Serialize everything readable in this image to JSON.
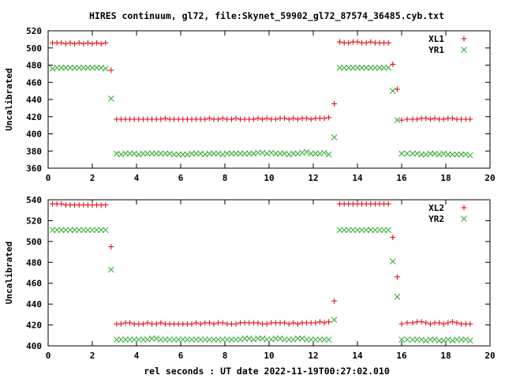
{
  "page": {
    "title": "HIRES continuum, gl72, file:Skynet_59902_gl72_87574_36485.cyb.txt",
    "xlabel": "rel seconds : UT date 2022-11-19T00:27:02.010"
  },
  "colors": {
    "red": "#e0000e",
    "green": "#2eab2e"
  },
  "chart_data": [
    {
      "type": "scatter",
      "title": "HIRES continuum, gl72, file:Skynet_59902_gl72_87574_36485.cyb.txt",
      "xlabel": "",
      "ylabel": "Uncalibrated",
      "xlim": [
        0,
        20
      ],
      "ylim": [
        360,
        520
      ],
      "xticks": [
        0,
        2,
        4,
        6,
        8,
        10,
        12,
        14,
        16,
        18,
        20
      ],
      "yticks": [
        360,
        380,
        400,
        420,
        440,
        460,
        480,
        500,
        520
      ],
      "grid": false,
      "legend": "top-right",
      "series": [
        {
          "name": "XL1",
          "marker": "plus",
          "color": "#e0000e",
          "x": [
            0.2,
            0.4,
            0.6,
            0.8,
            1.0,
            1.2,
            1.4,
            1.6,
            1.8,
            2.0,
            2.2,
            2.4,
            2.6,
            2.85,
            3.1,
            3.3,
            3.5,
            3.7,
            3.9,
            4.1,
            4.3,
            4.5,
            4.7,
            4.9,
            5.1,
            5.3,
            5.5,
            5.7,
            5.9,
            6.1,
            6.3,
            6.5,
            6.7,
            6.9,
            7.1,
            7.3,
            7.5,
            7.7,
            7.9,
            8.1,
            8.3,
            8.5,
            8.7,
            8.9,
            9.1,
            9.3,
            9.5,
            9.7,
            9.9,
            10.1,
            10.3,
            10.5,
            10.7,
            10.9,
            11.1,
            11.3,
            11.5,
            11.7,
            11.9,
            12.1,
            12.3,
            12.5,
            12.7,
            12.95,
            13.2,
            13.4,
            13.6,
            13.8,
            14.0,
            14.2,
            14.4,
            14.6,
            14.8,
            15.0,
            15.2,
            15.4,
            15.6,
            15.8,
            16.0,
            16.25,
            16.5,
            16.7,
            16.9,
            17.1,
            17.3,
            17.5,
            17.7,
            17.9,
            18.1,
            18.3,
            18.5,
            18.7,
            18.9,
            19.1
          ],
          "y": [
            506,
            506,
            506,
            505,
            506,
            505,
            506,
            505,
            506,
            505,
            506,
            505,
            506,
            474,
            417,
            417,
            417,
            417,
            417,
            417,
            417,
            417,
            417,
            417,
            417,
            418,
            417,
            417,
            417,
            417,
            417,
            417,
            417,
            417,
            417,
            418,
            417,
            417,
            418,
            417,
            417,
            418,
            417,
            417,
            417,
            417,
            418,
            417,
            418,
            417,
            417,
            418,
            418,
            417,
            418,
            417,
            418,
            418,
            417,
            418,
            418,
            418,
            419,
            435,
            507,
            506,
            506,
            507,
            507,
            506,
            506,
            507,
            506,
            506,
            506,
            506,
            481,
            452,
            416,
            417,
            417,
            417,
            418,
            418,
            417,
            418,
            417,
            417,
            418,
            418,
            417,
            417,
            417,
            417
          ],
          "skip": 3
        },
        {
          "name": "YR1",
          "marker": "cross",
          "color": "#2eab2e",
          "x": [
            0.2,
            0.4,
            0.6,
            0.8,
            1.0,
            1.2,
            1.4,
            1.6,
            1.8,
            2.0,
            2.2,
            2.4,
            2.6,
            2.85,
            3.1,
            3.3,
            3.5,
            3.7,
            3.9,
            4.1,
            4.3,
            4.5,
            4.7,
            4.9,
            5.1,
            5.3,
            5.5,
            5.7,
            5.9,
            6.1,
            6.3,
            6.5,
            6.7,
            6.9,
            7.1,
            7.3,
            7.5,
            7.7,
            7.9,
            8.1,
            8.3,
            8.5,
            8.7,
            8.9,
            9.1,
            9.3,
            9.5,
            9.7,
            9.9,
            10.1,
            10.3,
            10.5,
            10.7,
            10.9,
            11.1,
            11.3,
            11.5,
            11.7,
            11.9,
            12.1,
            12.3,
            12.5,
            12.7,
            12.95,
            13.2,
            13.4,
            13.6,
            13.8,
            14.0,
            14.2,
            14.4,
            14.6,
            14.8,
            15.0,
            15.2,
            15.4,
            15.6,
            15.8,
            16.0,
            16.25,
            16.5,
            16.7,
            16.9,
            17.1,
            17.3,
            17.5,
            17.7,
            17.9,
            18.1,
            18.3,
            18.5,
            18.7,
            18.9,
            19.1
          ],
          "y": [
            476,
            477,
            477,
            477,
            477,
            477,
            477,
            477,
            477,
            477,
            477,
            477,
            476,
            441,
            377,
            376,
            377,
            377,
            377,
            376,
            377,
            377,
            377,
            377,
            377,
            377,
            377,
            376,
            376,
            376,
            376,
            377,
            377,
            377,
            376,
            377,
            377,
            377,
            376,
            377,
            377,
            377,
            377,
            377,
            377,
            377,
            378,
            378,
            377,
            378,
            377,
            377,
            377,
            376,
            377,
            377,
            378,
            379,
            377,
            377,
            377,
            378,
            376,
            396,
            477,
            477,
            477,
            477,
            477,
            477,
            477,
            477,
            477,
            477,
            477,
            477,
            450,
            416,
            377,
            377,
            377,
            377,
            376,
            376,
            377,
            377,
            376,
            377,
            376,
            376,
            376,
            376,
            376,
            375
          ]
        }
      ]
    },
    {
      "type": "scatter",
      "title": "",
      "xlabel": "rel seconds : UT date 2022-11-19T00:27:02.010",
      "ylabel": "Uncalibrated",
      "xlim": [
        0,
        20
      ],
      "ylim": [
        400,
        540
      ],
      "xticks": [
        0,
        2,
        4,
        6,
        8,
        10,
        12,
        14,
        16,
        18,
        20
      ],
      "yticks": [
        400,
        420,
        440,
        460,
        480,
        500,
        520,
        540
      ],
      "grid": false,
      "legend": "top-right",
      "series": [
        {
          "name": "XL2",
          "marker": "plus",
          "color": "#e0000e",
          "x": [
            0.2,
            0.4,
            0.6,
            0.8,
            1.0,
            1.2,
            1.4,
            1.6,
            1.8,
            2.0,
            2.2,
            2.4,
            2.6,
            2.85,
            3.1,
            3.3,
            3.5,
            3.7,
            3.9,
            4.1,
            4.3,
            4.5,
            4.7,
            4.9,
            5.1,
            5.3,
            5.5,
            5.7,
            5.9,
            6.1,
            6.3,
            6.5,
            6.7,
            6.9,
            7.1,
            7.3,
            7.5,
            7.7,
            7.9,
            8.1,
            8.3,
            8.5,
            8.7,
            8.9,
            9.1,
            9.3,
            9.5,
            9.7,
            9.9,
            10.1,
            10.3,
            10.5,
            10.7,
            10.9,
            11.1,
            11.3,
            11.5,
            11.7,
            11.9,
            12.1,
            12.3,
            12.5,
            12.7,
            12.95,
            13.2,
            13.4,
            13.6,
            13.8,
            14.0,
            14.2,
            14.4,
            14.6,
            14.8,
            15.0,
            15.2,
            15.4,
            15.6,
            15.8,
            16.0,
            16.25,
            16.5,
            16.7,
            16.9,
            17.1,
            17.3,
            17.5,
            17.7,
            17.9,
            18.1,
            18.3,
            18.5,
            18.7,
            18.9,
            19.1
          ],
          "y": [
            536,
            536,
            536,
            535,
            535,
            535,
            535,
            535,
            535,
            535,
            535,
            535,
            535,
            495,
            421,
            421,
            422,
            422,
            421,
            421,
            421,
            422,
            421,
            421,
            422,
            421,
            421,
            421,
            421,
            421,
            421,
            421,
            422,
            421,
            422,
            422,
            421,
            422,
            422,
            421,
            421,
            421,
            422,
            422,
            422,
            422,
            422,
            421,
            421,
            422,
            422,
            422,
            422,
            421,
            422,
            421,
            422,
            422,
            422,
            422,
            423,
            422,
            423,
            443,
            536,
            536,
            536,
            536,
            536,
            536,
            536,
            536,
            536,
            536,
            536,
            536,
            504,
            466,
            421,
            422,
            422,
            423,
            423,
            422,
            421,
            422,
            422,
            421,
            422,
            423,
            422,
            421,
            421,
            421
          ],
          "skip": 3
        },
        {
          "name": "YR2",
          "marker": "cross",
          "color": "#2eab2e",
          "x": [
            0.2,
            0.4,
            0.6,
            0.8,
            1.0,
            1.2,
            1.4,
            1.6,
            1.8,
            2.0,
            2.2,
            2.4,
            2.6,
            2.85,
            3.1,
            3.3,
            3.5,
            3.7,
            3.9,
            4.1,
            4.3,
            4.5,
            4.7,
            4.9,
            5.1,
            5.3,
            5.5,
            5.7,
            5.9,
            6.1,
            6.3,
            6.5,
            6.7,
            6.9,
            7.1,
            7.3,
            7.5,
            7.7,
            7.9,
            8.1,
            8.3,
            8.5,
            8.7,
            8.9,
            9.1,
            9.3,
            9.5,
            9.7,
            9.9,
            10.1,
            10.3,
            10.5,
            10.7,
            10.9,
            11.1,
            11.3,
            11.5,
            11.7,
            11.9,
            12.1,
            12.3,
            12.5,
            12.7,
            12.95,
            13.2,
            13.4,
            13.6,
            13.8,
            14.0,
            14.2,
            14.4,
            14.6,
            14.8,
            15.0,
            15.2,
            15.4,
            15.6,
            15.8,
            16.0,
            16.25,
            16.5,
            16.7,
            16.9,
            17.1,
            17.3,
            17.5,
            17.7,
            17.9,
            18.1,
            18.3,
            18.5,
            18.7,
            18.9,
            19.1
          ],
          "y": [
            511,
            511,
            511,
            511,
            511,
            511,
            511,
            511,
            511,
            511,
            511,
            511,
            511,
            473,
            406,
            406,
            406,
            406,
            406,
            406,
            406,
            406,
            407,
            407,
            406,
            406,
            406,
            406,
            406,
            406,
            406,
            406,
            406,
            406,
            406,
            406,
            406,
            406,
            406,
            406,
            406,
            406,
            406,
            407,
            407,
            406,
            407,
            407,
            406,
            406,
            407,
            407,
            406,
            406,
            406,
            407,
            407,
            406,
            406,
            406,
            406,
            406,
            406,
            425,
            511,
            511,
            511,
            511,
            511,
            511,
            511,
            511,
            511,
            511,
            511,
            511,
            481,
            447,
            406,
            406,
            406,
            406,
            406,
            405,
            406,
            406,
            405,
            405,
            406,
            405,
            406,
            406,
            406,
            405
          ]
        }
      ]
    }
  ]
}
